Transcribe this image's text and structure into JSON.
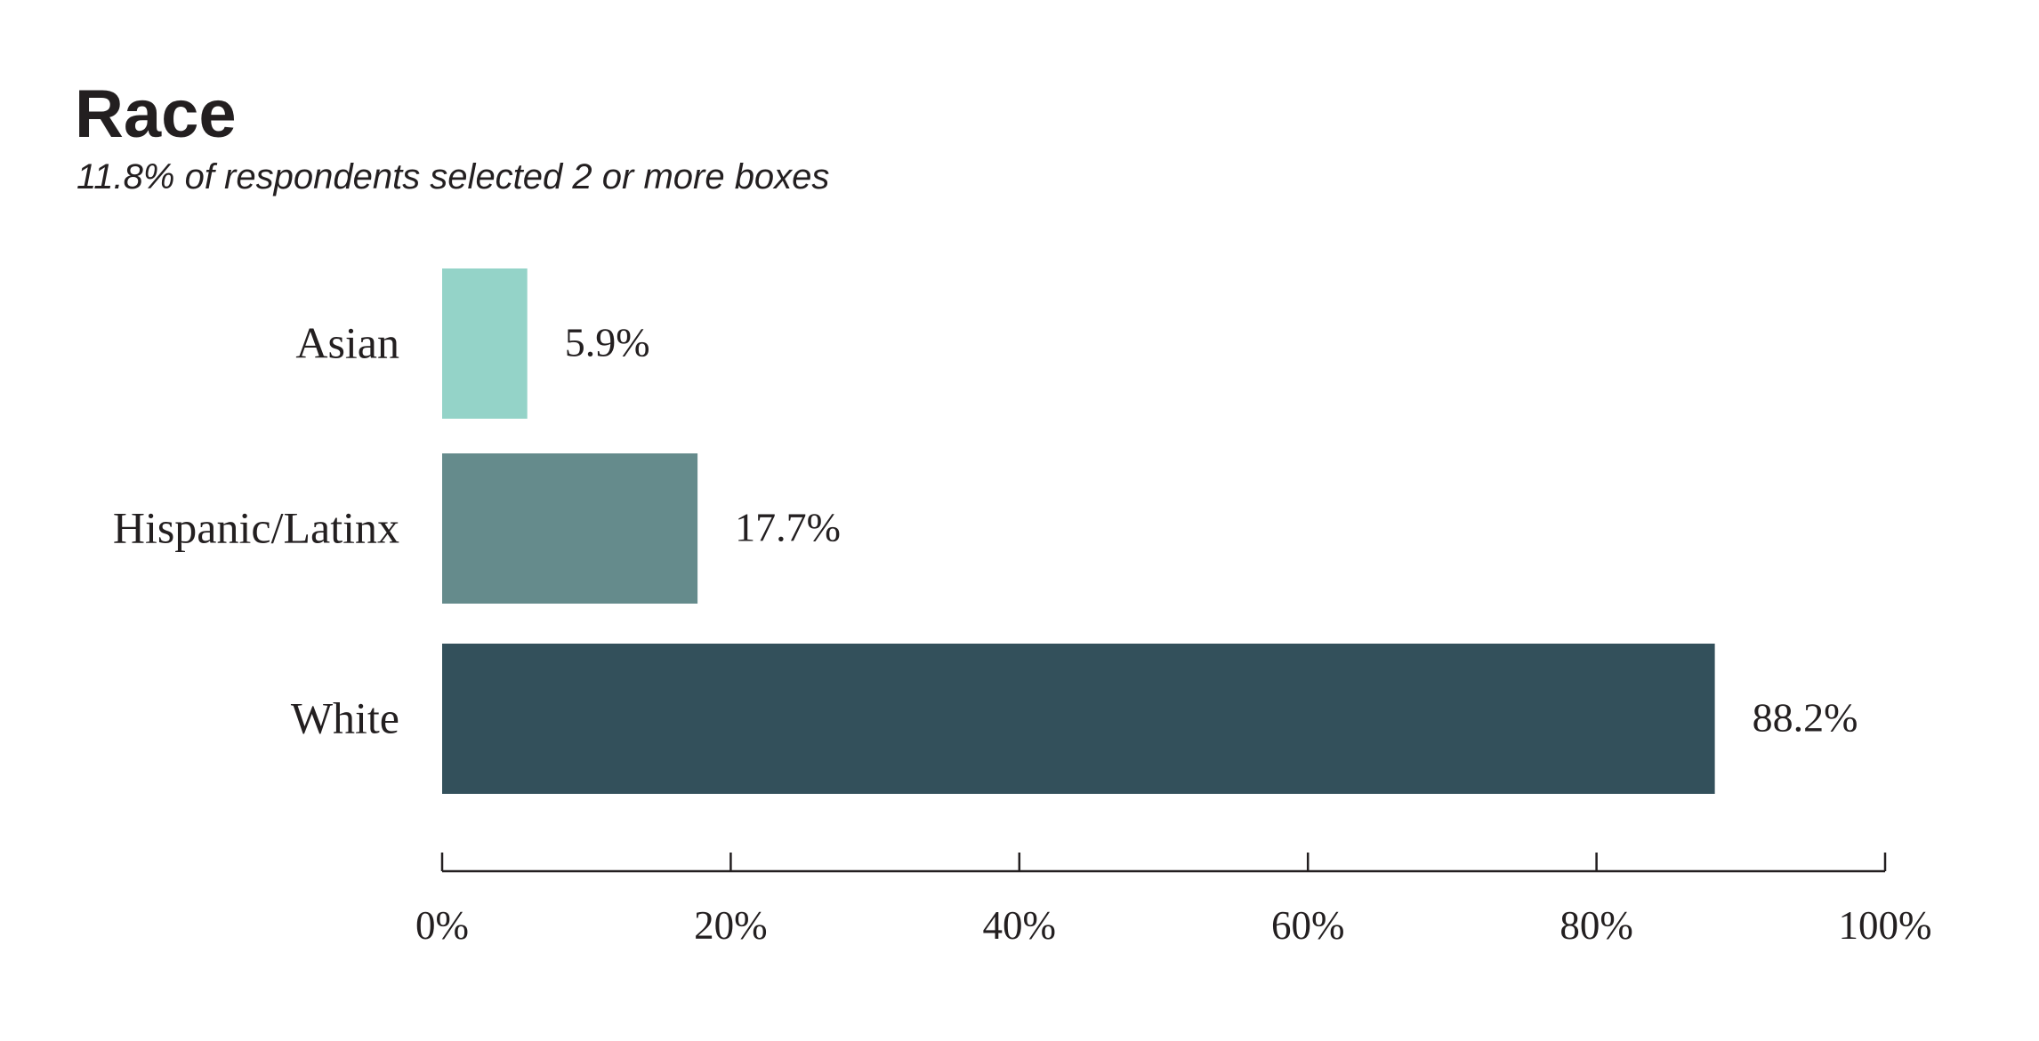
{
  "chart_data": {
    "type": "bar",
    "orientation": "horizontal",
    "title": "Race",
    "subtitle": "11.8% of respondents selected 2 or more boxes",
    "categories": [
      "Asian",
      "Hispanic/Latinx",
      "White"
    ],
    "values": [
      5.9,
      17.7,
      88.2
    ],
    "value_labels": [
      "5.9%",
      "17.7%",
      "88.2%"
    ],
    "colors": [
      "#94d3c8",
      "#658b8c",
      "#33505b"
    ],
    "xlim": [
      0,
      100
    ],
    "xticks": [
      0,
      20,
      40,
      60,
      80,
      100
    ],
    "xtick_labels": [
      "0%",
      "20%",
      "40%",
      "60%",
      "80%",
      "100%"
    ],
    "xlabel": "",
    "ylabel": "",
    "grid": false,
    "legend": "none"
  }
}
